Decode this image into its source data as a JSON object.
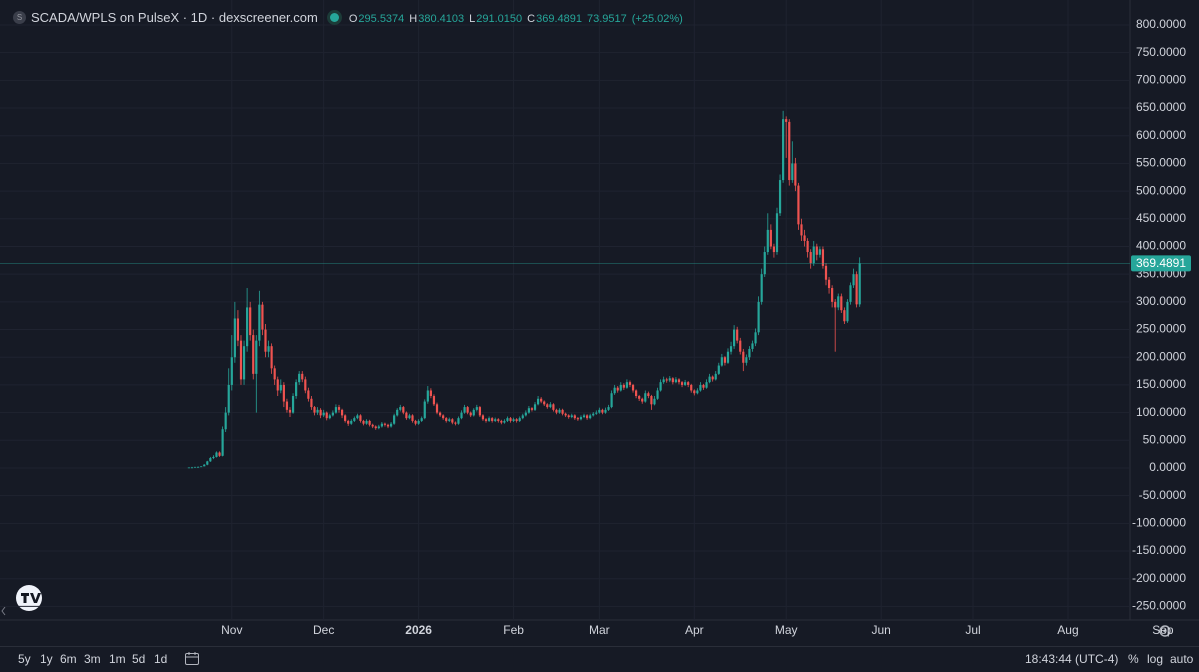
{
  "header": {
    "icon": "S",
    "title": "SCADA/WPLS on PulseX · 1D · dexscreener.com",
    "ohlc_labels": [
      "O",
      "H",
      "L",
      "C"
    ],
    "ohlc_values": [
      295.5374,
      380.4103,
      {
        "value": 291.015,
        "label": "291.0150"
      },
      369.4891
    ],
    "change": 73.9517,
    "change_pct": {
      "value": 25.02,
      "label": "(+25.02%)"
    }
  },
  "chart_data": {
    "type": "candlestick",
    "up_color": "#26a69a",
    "down_color": "#ef5350",
    "grid": true,
    "last_price_line": true,
    "candles": [
      [
        1,
        1,
        0,
        1
      ],
      [
        1,
        2,
        1,
        1
      ],
      [
        1,
        2,
        1,
        2
      ],
      [
        2,
        3,
        2,
        2
      ],
      [
        2,
        3,
        2,
        3
      ],
      [
        3,
        7,
        3,
        6
      ],
      [
        6,
        13,
        5,
        12
      ],
      [
        12,
        20,
        11,
        18
      ],
      [
        18,
        23,
        16,
        20
      ],
      [
        20,
        30,
        19,
        28
      ],
      [
        28,
        30,
        20,
        22
      ],
      [
        22,
        75,
        21,
        70
      ],
      [
        70,
        110,
        65,
        100
      ],
      [
        100,
        180,
        95,
        150
      ],
      [
        150,
        240,
        140,
        200
      ],
      [
        200,
        300,
        190,
        270
      ],
      [
        270,
        285,
        220,
        230
      ],
      [
        230,
        240,
        150,
        160
      ],
      [
        160,
        230,
        150,
        220
      ],
      [
        220,
        325,
        210,
        290
      ],
      [
        290,
        300,
        230,
        240
      ],
      [
        240,
        250,
        160,
        170
      ],
      [
        170,
        240,
        100,
        230
      ],
      [
        230,
        320,
        220,
        295
      ],
      [
        295,
        300,
        240,
        250
      ],
      [
        250,
        260,
        200,
        210
      ],
      [
        210,
        230,
        200,
        220
      ],
      [
        220,
        225,
        170,
        180
      ],
      [
        180,
        185,
        150,
        160
      ],
      [
        160,
        165,
        130,
        140
      ],
      [
        140,
        160,
        135,
        150
      ],
      [
        150,
        155,
        110,
        120
      ],
      [
        120,
        125,
        100,
        105
      ],
      [
        105,
        110,
        92,
        100
      ],
      [
        100,
        135,
        98,
        130
      ],
      [
        130,
        160,
        125,
        155
      ],
      [
        155,
        175,
        150,
        170
      ],
      [
        170,
        175,
        155,
        160
      ],
      [
        160,
        165,
        135,
        140
      ],
      [
        140,
        145,
        120,
        125
      ],
      [
        125,
        130,
        105,
        110
      ],
      [
        110,
        112,
        95,
        100
      ],
      [
        100,
        110,
        96,
        105
      ],
      [
        105,
        108,
        90,
        95
      ],
      [
        95,
        105,
        92,
        100
      ],
      [
        100,
        102,
        86,
        90
      ],
      [
        90,
        98,
        88,
        95
      ],
      [
        95,
        104,
        93,
        100
      ],
      [
        100,
        115,
        98,
        110
      ],
      [
        110,
        114,
        100,
        105
      ],
      [
        105,
        107,
        90,
        95
      ],
      [
        95,
        97,
        82,
        85
      ],
      [
        85,
        87,
        76,
        80
      ],
      [
        80,
        88,
        78,
        85
      ],
      [
        85,
        93,
        83,
        90
      ],
      [
        90,
        98,
        88,
        95
      ],
      [
        95,
        97,
        82,
        85
      ],
      [
        85,
        87,
        77,
        80
      ],
      [
        80,
        88,
        78,
        85
      ],
      [
        85,
        87,
        75,
        78
      ],
      [
        78,
        80,
        72,
        75
      ],
      [
        75,
        77,
        69,
        72
      ],
      [
        72,
        78,
        70,
        75
      ],
      [
        75,
        83,
        73,
        80
      ],
      [
        80,
        82,
        75,
        78
      ],
      [
        78,
        80,
        72,
        75
      ],
      [
        75,
        83,
        73,
        80
      ],
      [
        80,
        98,
        78,
        95
      ],
      [
        95,
        108,
        93,
        105
      ],
      [
        105,
        114,
        102,
        110
      ],
      [
        110,
        112,
        97,
        100
      ],
      [
        100,
        102,
        87,
        90
      ],
      [
        90,
        98,
        88,
        95
      ],
      [
        95,
        97,
        82,
        85
      ],
      [
        85,
        87,
        77,
        80
      ],
      [
        80,
        88,
        78,
        85
      ],
      [
        85,
        93,
        83,
        90
      ],
      [
        90,
        124,
        88,
        120
      ],
      [
        120,
        148,
        116,
        140
      ],
      [
        140,
        144,
        126,
        130
      ],
      [
        130,
        133,
        112,
        115
      ],
      [
        115,
        118,
        97,
        100
      ],
      [
        100,
        102,
        92,
        95
      ],
      [
        95,
        97,
        87,
        90
      ],
      [
        90,
        92,
        82,
        85
      ],
      [
        85,
        91,
        83,
        88
      ],
      [
        88,
        90,
        79,
        82
      ],
      [
        82,
        84,
        77,
        80
      ],
      [
        80,
        93,
        78,
        90
      ],
      [
        90,
        104,
        88,
        100
      ],
      [
        100,
        114,
        98,
        110
      ],
      [
        110,
        112,
        97,
        100
      ],
      [
        100,
        102,
        92,
        95
      ],
      [
        95,
        108,
        93,
        105
      ],
      [
        105,
        114,
        102,
        110
      ],
      [
        110,
        112,
        92,
        95
      ],
      [
        95,
        97,
        85,
        88
      ],
      [
        88,
        90,
        82,
        85
      ],
      [
        85,
        93,
        83,
        90
      ],
      [
        90,
        92,
        82,
        85
      ],
      [
        85,
        91,
        83,
        88
      ],
      [
        88,
        90,
        82,
        85
      ],
      [
        85,
        87,
        79,
        82
      ],
      [
        82,
        88,
        80,
        85
      ],
      [
        85,
        93,
        83,
        90
      ],
      [
        90,
        92,
        82,
        85
      ],
      [
        85,
        91,
        83,
        88
      ],
      [
        88,
        90,
        82,
        85
      ],
      [
        85,
        93,
        83,
        90
      ],
      [
        90,
        98,
        88,
        95
      ],
      [
        95,
        104,
        93,
        100
      ],
      [
        100,
        112,
        98,
        108
      ],
      [
        108,
        110,
        102,
        105
      ],
      [
        105,
        119,
        103,
        115
      ],
      [
        115,
        130,
        113,
        125
      ],
      [
        125,
        128,
        117,
        120
      ],
      [
        120,
        122,
        112,
        115
      ],
      [
        115,
        117,
        107,
        110
      ],
      [
        110,
        119,
        108,
        115
      ],
      [
        115,
        117,
        102,
        105
      ],
      [
        105,
        107,
        97,
        100
      ],
      [
        100,
        108,
        98,
        105
      ],
      [
        105,
        107,
        95,
        98
      ],
      [
        98,
        100,
        92,
        95
      ],
      [
        95,
        97,
        89,
        92
      ],
      [
        92,
        98,
        90,
        95
      ],
      [
        95,
        97,
        87,
        90
      ],
      [
        90,
        92,
        85,
        88
      ],
      [
        88,
        95,
        86,
        92
      ],
      [
        92,
        98,
        90,
        95
      ],
      [
        95,
        97,
        87,
        90
      ],
      [
        90,
        98,
        88,
        95
      ],
      [
        95,
        101,
        93,
        98
      ],
      [
        98,
        104,
        96,
        100
      ],
      [
        100,
        109,
        98,
        105
      ],
      [
        105,
        107,
        97,
        100
      ],
      [
        100,
        109,
        98,
        105
      ],
      [
        105,
        114,
        103,
        110
      ],
      [
        110,
        140,
        108,
        135
      ],
      [
        135,
        150,
        132,
        145
      ],
      [
        145,
        148,
        136,
        140
      ],
      [
        140,
        155,
        138,
        150
      ],
      [
        150,
        153,
        141,
        145
      ],
      [
        145,
        160,
        143,
        155
      ],
      [
        155,
        158,
        146,
        150
      ],
      [
        150,
        152,
        136,
        140
      ],
      [
        140,
        142,
        126,
        130
      ],
      [
        130,
        132,
        121,
        125
      ],
      [
        125,
        127,
        116,
        120
      ],
      [
        120,
        140,
        118,
        135
      ],
      [
        135,
        138,
        126,
        130
      ],
      [
        130,
        132,
        105,
        115
      ],
      [
        115,
        130,
        113,
        125
      ],
      [
        125,
        145,
        123,
        140
      ],
      [
        140,
        160,
        138,
        155
      ],
      [
        155,
        165,
        152,
        160
      ],
      [
        160,
        163,
        154,
        158
      ],
      [
        158,
        166,
        155,
        162
      ],
      [
        162,
        164,
        151,
        155
      ],
      [
        155,
        164,
        153,
        160
      ],
      [
        160,
        162,
        151,
        155
      ],
      [
        155,
        157,
        146,
        150
      ],
      [
        150,
        159,
        148,
        155
      ],
      [
        155,
        157,
        146,
        150
      ],
      [
        150,
        152,
        136,
        140
      ],
      [
        140,
        142,
        131,
        135
      ],
      [
        135,
        144,
        133,
        140
      ],
      [
        140,
        155,
        138,
        150
      ],
      [
        150,
        152,
        141,
        145
      ],
      [
        145,
        160,
        143,
        155
      ],
      [
        155,
        170,
        153,
        165
      ],
      [
        165,
        167,
        156,
        160
      ],
      [
        160,
        175,
        158,
        170
      ],
      [
        170,
        190,
        168,
        185
      ],
      [
        185,
        206,
        183,
        200
      ],
      [
        200,
        202,
        185,
        190
      ],
      [
        190,
        216,
        188,
        210
      ],
      [
        210,
        228,
        205,
        220
      ],
      [
        220,
        258,
        215,
        250
      ],
      [
        250,
        255,
        225,
        230
      ],
      [
        230,
        235,
        205,
        210
      ],
      [
        210,
        215,
        175,
        190
      ],
      [
        190,
        205,
        185,
        200
      ],
      [
        200,
        220,
        195,
        215
      ],
      [
        215,
        230,
        210,
        225
      ],
      [
        225,
        252,
        220,
        245
      ],
      [
        245,
        310,
        240,
        300
      ],
      [
        300,
        360,
        295,
        350
      ],
      [
        350,
        400,
        345,
        390
      ],
      [
        390,
        460,
        385,
        430
      ],
      [
        430,
        440,
        395,
        400
      ],
      [
        400,
        405,
        380,
        390
      ],
      [
        390,
        470,
        385,
        460
      ],
      [
        460,
        530,
        455,
        520
      ],
      [
        520,
        645,
        515,
        630
      ],
      [
        630,
        635,
        560,
        625
      ],
      [
        625,
        630,
        510,
        520
      ],
      [
        520,
        590,
        515,
        550
      ],
      [
        550,
        560,
        500,
        510
      ],
      [
        510,
        515,
        430,
        440
      ],
      [
        440,
        450,
        410,
        420
      ],
      [
        420,
        430,
        400,
        410
      ],
      [
        410,
        415,
        380,
        390
      ],
      [
        390,
        395,
        360,
        370
      ],
      [
        370,
        410,
        365,
        400
      ],
      [
        400,
        405,
        375,
        385
      ],
      [
        385,
        400,
        380,
        395
      ],
      [
        395,
        400,
        360,
        365
      ],
      [
        365,
        370,
        330,
        340
      ],
      [
        340,
        345,
        315,
        325
      ],
      [
        325,
        330,
        290,
        300
      ],
      [
        300,
        305,
        210,
        290
      ],
      [
        290,
        315,
        285,
        310
      ],
      [
        310,
        315,
        280,
        285
      ],
      [
        285,
        290,
        260,
        265
      ],
      [
        265,
        305,
        262,
        300
      ],
      [
        300,
        335,
        295,
        330
      ],
      [
        330,
        360,
        325,
        350
      ],
      [
        350,
        355,
        290,
        295.5374
      ],
      [
        295.5374,
        380.4103,
        291.015,
        369.4891
      ]
    ],
    "xlim": [
      -60.7,
      306.6
    ],
    "xticks": [
      {
        "value": 14,
        "label": "Nov"
      },
      {
        "value": 44,
        "label": "Dec"
      },
      {
        "value": 75,
        "label": "2026"
      },
      {
        "value": 106,
        "label": "Feb"
      },
      {
        "value": 134,
        "label": "Mar"
      },
      {
        "value": 165,
        "label": "Apr"
      },
      {
        "value": 195,
        "label": "May"
      },
      {
        "value": 226,
        "label": "Jun"
      },
      {
        "value": 256,
        "label": "Jul"
      },
      {
        "value": 287,
        "label": "Aug"
      },
      {
        "value": 318,
        "label": "Sep"
      }
    ],
    "ylim": [
      -274.5,
      830.7
    ],
    "yticks": [
      {
        "value": -250,
        "label": "-250.0000"
      },
      {
        "value": -200,
        "label": "-200.0000"
      },
      {
        "value": -150,
        "label": "-150.0000"
      },
      {
        "value": -100,
        "label": "-100.0000"
      },
      {
        "value": -50,
        "label": "-50.0000"
      },
      {
        "value": 0,
        "label": "0.0000"
      },
      {
        "value": 50,
        "label": "50.0000"
      },
      {
        "value": 100,
        "label": "100.0000"
      },
      {
        "value": 150,
        "label": "150.0000"
      },
      {
        "value": 200,
        "label": "200.0000"
      },
      {
        "value": 250,
        "label": "250.0000"
      },
      {
        "value": 300,
        "label": "300.0000"
      },
      {
        "value": 350,
        "label": "350.0000"
      },
      {
        "value": 400,
        "label": "400.0000"
      },
      {
        "value": 450,
        "label": "450.0000"
      },
      {
        "value": 500,
        "label": "500.0000"
      },
      {
        "value": 550,
        "label": "550.0000"
      },
      {
        "value": 600,
        "label": "600.0000"
      },
      {
        "value": 650,
        "label": "650.0000"
      },
      {
        "value": 700,
        "label": "700.0000"
      },
      {
        "value": 750,
        "label": "750.0000"
      },
      {
        "value": 800,
        "label": "800.0000"
      }
    ]
  },
  "toolbar": {
    "ranges": [
      "5y",
      "1y",
      "6m",
      "3m",
      "1m",
      "5d",
      "1d"
    ],
    "time": "18:43:44 (UTC-4)",
    "options": [
      "%",
      "log",
      "auto"
    ]
  }
}
